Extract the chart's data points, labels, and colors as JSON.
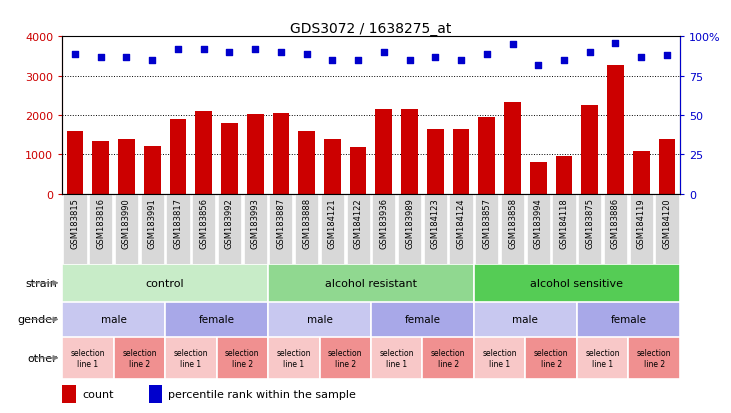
{
  "title": "GDS3072 / 1638275_at",
  "samples": [
    "GSM183815",
    "GSM183816",
    "GSM183990",
    "GSM183991",
    "GSM183817",
    "GSM183856",
    "GSM183992",
    "GSM183993",
    "GSM183887",
    "GSM183888",
    "GSM184121",
    "GSM184122",
    "GSM183936",
    "GSM183989",
    "GSM184123",
    "GSM184124",
    "GSM183857",
    "GSM183858",
    "GSM183994",
    "GSM184118",
    "GSM183875",
    "GSM183886",
    "GSM184119",
    "GSM184120"
  ],
  "counts": [
    1600,
    1350,
    1400,
    1220,
    1900,
    2100,
    1800,
    2020,
    2050,
    1600,
    1390,
    1200,
    2150,
    2150,
    1650,
    1650,
    1950,
    2320,
    820,
    960,
    2250,
    3280,
    1100,
    1380
  ],
  "percentiles": [
    89,
    87,
    87,
    85,
    92,
    92,
    90,
    92,
    90,
    89,
    85,
    85,
    90,
    85,
    87,
    85,
    89,
    95,
    82,
    85,
    90,
    96,
    87,
    88
  ],
  "bar_color": "#cc0000",
  "dot_color": "#0000cc",
  "ylim_left": [
    0,
    4000
  ],
  "ylim_right": [
    0,
    100
  ],
  "yticks_left": [
    0,
    1000,
    2000,
    3000,
    4000
  ],
  "yticks_right": [
    0,
    25,
    50,
    75,
    100
  ],
  "strain_groups": [
    {
      "label": "control",
      "start": 0,
      "end": 8,
      "color": "#c8ecc8"
    },
    {
      "label": "alcohol resistant",
      "start": 8,
      "end": 16,
      "color": "#90d890"
    },
    {
      "label": "alcohol sensitive",
      "start": 16,
      "end": 24,
      "color": "#55cc55"
    }
  ],
  "gender_groups": [
    {
      "label": "male",
      "start": 0,
      "end": 4,
      "color": "#c8c8f0"
    },
    {
      "label": "female",
      "start": 4,
      "end": 8,
      "color": "#a8a8e8"
    },
    {
      "label": "male",
      "start": 8,
      "end": 12,
      "color": "#c8c8f0"
    },
    {
      "label": "female",
      "start": 12,
      "end": 16,
      "color": "#a8a8e8"
    },
    {
      "label": "male",
      "start": 16,
      "end": 20,
      "color": "#c8c8f0"
    },
    {
      "label": "female",
      "start": 20,
      "end": 24,
      "color": "#a8a8e8"
    }
  ],
  "other_groups": [
    {
      "label": "selection\nline 1",
      "start": 0,
      "end": 2,
      "color": "#f8c8c8"
    },
    {
      "label": "selection\nline 2",
      "start": 2,
      "end": 4,
      "color": "#f09090"
    },
    {
      "label": "selection\nline 1",
      "start": 4,
      "end": 6,
      "color": "#f8c8c8"
    },
    {
      "label": "selection\nline 2",
      "start": 6,
      "end": 8,
      "color": "#f09090"
    },
    {
      "label": "selection\nline 1",
      "start": 8,
      "end": 10,
      "color": "#f8c8c8"
    },
    {
      "label": "selection\nline 2",
      "start": 10,
      "end": 12,
      "color": "#f09090"
    },
    {
      "label": "selection\nline 1",
      "start": 12,
      "end": 14,
      "color": "#f8c8c8"
    },
    {
      "label": "selection\nline 2",
      "start": 14,
      "end": 16,
      "color": "#f09090"
    },
    {
      "label": "selection\nline 1",
      "start": 16,
      "end": 18,
      "color": "#f8c8c8"
    },
    {
      "label": "selection\nline 2",
      "start": 18,
      "end": 20,
      "color": "#f09090"
    },
    {
      "label": "selection\nline 1",
      "start": 20,
      "end": 22,
      "color": "#f8c8c8"
    },
    {
      "label": "selection\nline 2",
      "start": 22,
      "end": 24,
      "color": "#f09090"
    }
  ],
  "row_label_fontsize": 8,
  "tick_fontsize": 6,
  "annotation_fontsize": 7,
  "legend_fontsize": 8
}
